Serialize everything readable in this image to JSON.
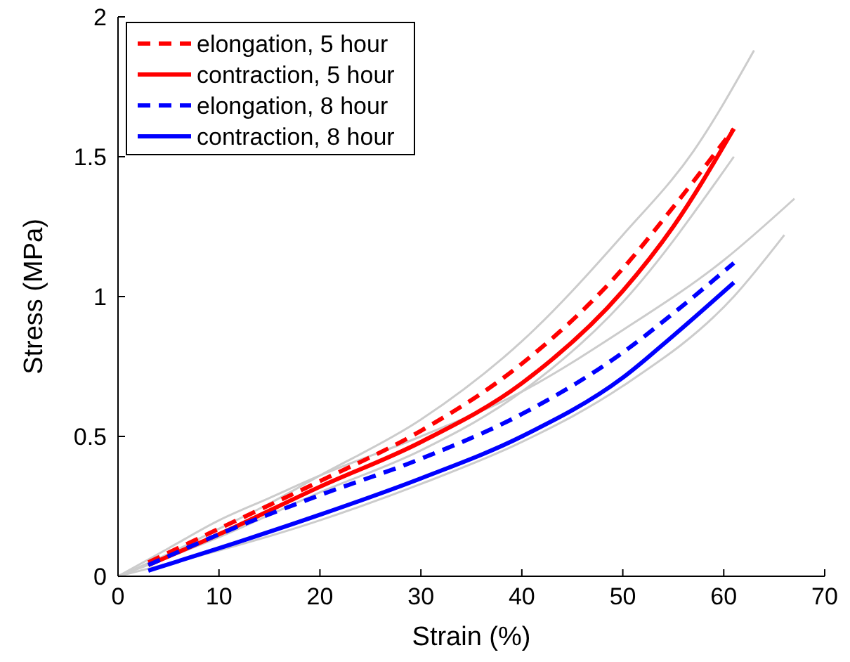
{
  "chart_data": {
    "type": "line",
    "xlabel": "Strain (%)",
    "ylabel": "Stress (MPa)",
    "xlim": [
      0,
      70
    ],
    "xticks": [
      0,
      10,
      20,
      30,
      40,
      50,
      60,
      70
    ],
    "ylim": [
      0,
      2
    ],
    "yticks": [
      0,
      0.5,
      1,
      1.5,
      2
    ],
    "legend": "top left",
    "grid": false,
    "marker": "none",
    "series": [
      {
        "color": "#cccccc",
        "x": [
          0,
          5,
          10,
          15,
          20,
          30,
          40,
          50,
          57,
          63
        ],
        "values": [
          0,
          0.08,
          0.17,
          0.26,
          0.36,
          0.56,
          0.84,
          1.22,
          1.52,
          1.88
        ]
      },
      {
        "color": "#cccccc",
        "x": [
          0,
          10,
          20,
          30,
          40,
          50,
          61
        ],
        "values": [
          0,
          0.14,
          0.3,
          0.45,
          0.66,
          0.98,
          1.5
        ]
      },
      {
        "color": "#cccccc",
        "x": [
          0,
          5,
          10,
          15,
          20,
          30,
          40,
          50,
          60,
          67
        ],
        "values": [
          0,
          0.1,
          0.2,
          0.28,
          0.36,
          0.5,
          0.66,
          0.88,
          1.13,
          1.35
        ]
      },
      {
        "color": "#cccccc",
        "x": [
          0,
          10,
          20,
          30,
          40,
          50,
          61,
          66
        ],
        "values": [
          0,
          null,
          0.2,
          0.33,
          0.48,
          0.68,
          1.0,
          1.22
        ]
      },
      {
        "name": "elongation, 5 hour",
        "color": "#ff0000",
        "line_style": "dashed",
        "x": [
          3,
          10,
          20,
          30,
          40,
          50,
          55,
          61
        ],
        "values": [
          0.05,
          0.17,
          0.34,
          0.52,
          0.76,
          1.1,
          1.32,
          1.6
        ]
      },
      {
        "name": "contraction, 5 hour",
        "color": "#ff0000",
        "line_style": "solid",
        "x": [
          3,
          10,
          20,
          30,
          40,
          50,
          55,
          61
        ],
        "values": [
          0.04,
          0.15,
          0.32,
          0.48,
          0.69,
          1.02,
          1.25,
          1.6
        ]
      },
      {
        "name": "elongation, 8 hour",
        "color": "#0000ff",
        "line_style": "dashed",
        "x": [
          3,
          10,
          20,
          30,
          40,
          50,
          55,
          61
        ],
        "values": [
          0.04,
          0.15,
          0.29,
          0.42,
          0.58,
          0.8,
          0.94,
          1.12
        ]
      },
      {
        "name": "contraction, 8 hour",
        "color": "#0000ff",
        "line_style": "solid",
        "x": [
          3,
          10,
          20,
          30,
          40,
          50,
          55,
          61
        ],
        "values": [
          0.02,
          0.1,
          0.22,
          0.35,
          0.5,
          0.71,
          0.86,
          1.05
        ]
      }
    ]
  }
}
